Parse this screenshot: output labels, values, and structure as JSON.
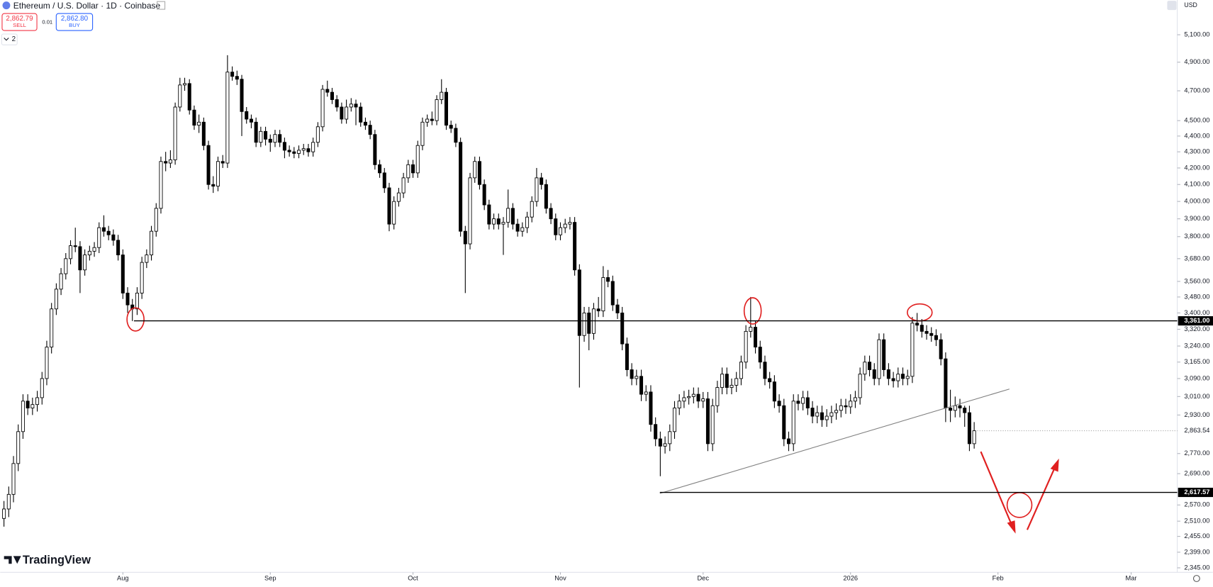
{
  "header": {
    "title": "Ethereum / U.S. Dollar · 1D · Coinbase",
    "sell_price": "2,862.79",
    "sell": "SELL",
    "spread": "0.01",
    "buy_price": "2,862.80",
    "buy": "BUY",
    "indicators": "2",
    "currency": "USD",
    "brand": "TradingView"
  },
  "chart_data": {
    "type": "candlestick",
    "log": true,
    "up_color": "#ffffff",
    "down_color": "#000000",
    "ylim": [
      2335,
      5365
    ],
    "yticks": [
      {
        "value": 5100,
        "label": "5,100.00"
      },
      {
        "value": 4900,
        "label": "4,900.00"
      },
      {
        "value": 4700,
        "label": "4,700.00"
      },
      {
        "value": 4500,
        "label": "4,500.00"
      },
      {
        "value": 4400,
        "label": "4,400.00"
      },
      {
        "value": 4300,
        "label": "4,300.00"
      },
      {
        "value": 4200,
        "label": "4,200.00"
      },
      {
        "value": 4100,
        "label": "4,100.00"
      },
      {
        "value": 4000,
        "label": "4,000.00"
      },
      {
        "value": 3900,
        "label": "3,900.00"
      },
      {
        "value": 3800,
        "label": "3,800.00"
      },
      {
        "value": 3680,
        "label": "3,680.00"
      },
      {
        "value": 3560,
        "label": "3,560.00"
      },
      {
        "value": 3480,
        "label": "3,480.00"
      },
      {
        "value": 3400,
        "label": "3,400.00"
      },
      {
        "value": 3320,
        "label": "3,320.00"
      },
      {
        "value": 3240,
        "label": "3,240.00"
      },
      {
        "value": 3165,
        "label": "3,165.00"
      },
      {
        "value": 3090,
        "label": "3,090.00"
      },
      {
        "value": 3010,
        "label": "3,010.00"
      },
      {
        "value": 2930,
        "label": "2,930.00"
      },
      {
        "value": 2770,
        "label": "2,770.00"
      },
      {
        "value": 2690,
        "label": "2,690.00"
      },
      {
        "value": 2570,
        "label": "2,570.00"
      },
      {
        "value": 2510,
        "label": "2,510.00"
      },
      {
        "value": 2455,
        "label": "2,455.00"
      },
      {
        "value": 2399,
        "label": "2,399.00"
      },
      {
        "value": 2345,
        "label": "2,345.00"
      }
    ],
    "xlim": [
      -0.8,
      246.7
    ],
    "xticks": [
      {
        "value": 25,
        "label": "Aug"
      },
      {
        "value": 56,
        "label": "Sep"
      },
      {
        "value": 86,
        "label": "Oct"
      },
      {
        "value": 117,
        "label": "Nov"
      },
      {
        "value": 147,
        "label": "Dec"
      },
      {
        "value": 178,
        "label": "2026"
      },
      {
        "value": 209,
        "label": "Feb"
      },
      {
        "value": 237,
        "label": "Mar"
      }
    ],
    "hlines": [
      {
        "value": 3361,
        "label": "3,361.00"
      },
      {
        "value": 2617.57,
        "label": "2,617.57"
      }
    ],
    "last_label": "2,863.54",
    "open": [
      2520,
      2555,
      2610,
      2730,
      2860,
      2990,
      2960,
      2975,
      3005,
      3090,
      3235,
      3420,
      3520,
      3600,
      3680,
      3750,
      3745,
      3620,
      3700,
      3720,
      3740,
      3850,
      3830,
      3810,
      3780,
      3700,
      3500,
      3440,
      3420,
      3500,
      3660,
      3700,
      3830,
      3960,
      4240,
      4230,
      4250,
      4590,
      4740,
      4750,
      4570,
      4470,
      4490,
      4340,
      4100,
      4090,
      4240,
      4230,
      4830,
      4800,
      4780,
      4560,
      4510,
      4490,
      4360,
      4430,
      4380,
      4360,
      4410,
      4360,
      4310,
      4300,
      4290,
      4310,
      4320,
      4300,
      4360,
      4460,
      4710,
      4690,
      4640,
      4590,
      4510,
      4590,
      4610,
      4590,
      4490,
      4470,
      4410,
      4220,
      4170,
      4080,
      3870,
      4000,
      4050,
      4140,
      4220,
      4170,
      4340,
      4490,
      4510,
      4500,
      4640,
      4690,
      4470,
      4450,
      4360,
      3830,
      3760,
      4140,
      4240,
      4100,
      3980,
      3870,
      3900,
      3870,
      3880,
      3960,
      3870,
      3830,
      3850,
      3910,
      4000,
      4140,
      4100,
      3960,
      3900,
      3810,
      3850,
      3870,
      3880,
      3620,
      3290,
      3400,
      3300,
      3420,
      3410,
      3580,
      3560,
      3440,
      3400,
      3250,
      3130,
      3090,
      3100,
      3020,
      3030,
      2890,
      2830,
      2800,
      2810,
      2860,
      2960,
      2990,
      3005,
      3010,
      3020,
      2990,
      3000,
      2810,
      2970,
      3050,
      3110,
      3050,
      3060,
      3090,
      3165,
      3310,
      3330,
      3235,
      3165,
      3090,
      3075,
      2990,
      2970,
      2830,
      2810,
      2990,
      2980,
      3005,
      2960,
      2925,
      2940,
      2910,
      2925,
      2940,
      2950,
      2970,
      2965,
      2990,
      3005,
      3110,
      3165,
      3130,
      3090,
      3270,
      3130,
      3090,
      3080,
      3110,
      3090,
      3100,
      3350,
      3340,
      3310,
      3300,
      3290,
      3270,
      3180,
      2960,
      2950,
      2970,
      2960,
      2940,
      2810
    ],
    "high": [
      2585,
      2640,
      2760,
      2890,
      3020,
      3020,
      3005,
      3035,
      3120,
      3265,
      3450,
      3550,
      3630,
      3710,
      3780,
      3850,
      3775,
      3730,
      3750,
      3770,
      3880,
      3920,
      3860,
      3840,
      3810,
      3730,
      3530,
      3470,
      3530,
      3690,
      3730,
      3860,
      3990,
      4270,
      4300,
      4310,
      4620,
      4790,
      4790,
      4780,
      4600,
      4540,
      4520,
      4370,
      4150,
      4270,
      4280,
      4950,
      4870,
      4840,
      4810,
      4590,
      4540,
      4520,
      4460,
      4460,
      4410,
      4440,
      4440,
      4390,
      4340,
      4330,
      4340,
      4350,
      4350,
      4390,
      4490,
      4740,
      4770,
      4720,
      4670,
      4620,
      4640,
      4650,
      4640,
      4620,
      4520,
      4500,
      4440,
      4250,
      4200,
      4110,
      4030,
      4080,
      4170,
      4250,
      4250,
      4370,
      4520,
      4540,
      4560,
      4670,
      4780,
      4720,
      4500,
      4480,
      4390,
      3860,
      4170,
      4270,
      4270,
      4130,
      4010,
      3930,
      3930,
      3910,
      4070,
      3990,
      3900,
      3880,
      3940,
      4030,
      4200,
      4170,
      4130,
      3990,
      3930,
      3880,
      3900,
      3910,
      3910,
      3650,
      3430,
      3430,
      3450,
      3480,
      3640,
      3620,
      3590,
      3470,
      3430,
      3280,
      3160,
      3130,
      3130,
      3060,
      3060,
      2920,
      2860,
      2840,
      2890,
      2990,
      3020,
      3035,
      3040,
      3050,
      3050,
      3030,
      3030,
      3000,
      3080,
      3140,
      3140,
      3090,
      3120,
      3195,
      3340,
      3480,
      3360,
      3265,
      3195,
      3120,
      3105,
      3020,
      3000,
      2860,
      3020,
      3020,
      3035,
      3035,
      2990,
      2970,
      2970,
      2955,
      2970,
      2980,
      3000,
      3000,
      3020,
      3035,
      3140,
      3195,
      3195,
      3160,
      3300,
      3300,
      3160,
      3120,
      3140,
      3140,
      3130,
      3380,
      3400,
      3370,
      3340,
      3330,
      3320,
      3300,
      3210,
      3040,
      3010,
      3000,
      2970,
      2970,
      2900
    ],
    "low": [
      2490,
      2525,
      2580,
      2700,
      2830,
      2930,
      2930,
      2945,
      2975,
      3060,
      3205,
      3390,
      3490,
      3570,
      3650,
      3715,
      3500,
      3590,
      3670,
      3690,
      3710,
      3800,
      3780,
      3750,
      3670,
      3470,
      3400,
      3360,
      3390,
      3470,
      3630,
      3670,
      3800,
      3930,
      4180,
      4200,
      4220,
      4560,
      4700,
      4540,
      4440,
      4420,
      4310,
      4070,
      4050,
      4060,
      4200,
      4200,
      4770,
      4740,
      4400,
      4480,
      4450,
      4330,
      4330,
      4340,
      4300,
      4330,
      4330,
      4260,
      4270,
      4260,
      4260,
      4280,
      4270,
      4270,
      4330,
      4430,
      4660,
      4610,
      4560,
      4480,
      4480,
      4560,
      4470,
      4460,
      4440,
      4380,
      4190,
      4140,
      4050,
      3830,
      3840,
      3970,
      4020,
      4110,
      4140,
      4140,
      4310,
      4460,
      4470,
      4470,
      4610,
      4440,
      4420,
      4330,
      3800,
      3500,
      3730,
      4110,
      4070,
      3950,
      3840,
      3840,
      3840,
      3700,
      3850,
      3840,
      3800,
      3800,
      3820,
      3880,
      3970,
      4070,
      3930,
      3870,
      3780,
      3780,
      3820,
      3840,
      3590,
      3050,
      3260,
      3220,
      3270,
      3380,
      3380,
      3530,
      3410,
      3370,
      3220,
      3100,
      3060,
      3060,
      2990,
      2990,
      2860,
      2800,
      2680,
      2770,
      2780,
      2830,
      2930,
      2960,
      2975,
      2980,
      2960,
      2960,
      2780,
      2780,
      2940,
      3020,
      3020,
      3020,
      3030,
      3060,
      3135,
      3280,
      3205,
      3135,
      3060,
      3045,
      2960,
      2940,
      2800,
      2780,
      2780,
      2950,
      2950,
      2930,
      2895,
      2895,
      2880,
      2880,
      2895,
      2910,
      2920,
      2935,
      2935,
      2960,
      2975,
      3080,
      3100,
      3060,
      3060,
      3100,
      3060,
      3050,
      3050,
      3060,
      3060,
      3070,
      3310,
      3280,
      3270,
      3260,
      3240,
      3150,
      2900,
      2900,
      2920,
      2920,
      2880,
      2780,
      2790
    ],
    "close": [
      2555,
      2610,
      2730,
      2860,
      2990,
      2960,
      2975,
      3005,
      3090,
      3235,
      3420,
      3520,
      3600,
      3680,
      3750,
      3745,
      3620,
      3700,
      3720,
      3740,
      3850,
      3830,
      3810,
      3780,
      3700,
      3500,
      3440,
      3420,
      3500,
      3660,
      3700,
      3830,
      3960,
      4240,
      4230,
      4250,
      4590,
      4740,
      4750,
      4570,
      4470,
      4490,
      4340,
      4100,
      4090,
      4240,
      4230,
      4830,
      4800,
      4780,
      4560,
      4510,
      4490,
      4360,
      4430,
      4380,
      4360,
      4410,
      4360,
      4310,
      4300,
      4290,
      4310,
      4320,
      4300,
      4360,
      4460,
      4710,
      4690,
      4640,
      4590,
      4510,
      4590,
      4610,
      4590,
      4490,
      4470,
      4410,
      4220,
      4170,
      4080,
      3870,
      4000,
      4050,
      4140,
      4220,
      4170,
      4340,
      4490,
      4510,
      4500,
      4640,
      4690,
      4470,
      4450,
      4360,
      3830,
      3760,
      4140,
      4240,
      4100,
      3980,
      3870,
      3900,
      3870,
      3880,
      3960,
      3870,
      3830,
      3850,
      3910,
      4000,
      4140,
      4100,
      3960,
      3900,
      3810,
      3850,
      3870,
      3880,
      3620,
      3290,
      3400,
      3300,
      3420,
      3410,
      3580,
      3560,
      3440,
      3400,
      3250,
      3130,
      3090,
      3100,
      3020,
      3030,
      2890,
      2830,
      2800,
      2810,
      2860,
      2960,
      2990,
      3005,
      3010,
      3020,
      2990,
      3000,
      2810,
      2970,
      3050,
      3110,
      3050,
      3060,
      3090,
      3165,
      3310,
      3330,
      3235,
      3165,
      3090,
      3075,
      2990,
      2970,
      2830,
      2810,
      2990,
      2980,
      3005,
      2960,
      2925,
      2940,
      2910,
      2925,
      2940,
      2950,
      2970,
      2965,
      2990,
      3005,
      3110,
      3165,
      3130,
      3090,
      3270,
      3130,
      3090,
      3080,
      3110,
      3090,
      3100,
      3350,
      3340,
      3310,
      3300,
      3290,
      3270,
      3180,
      2960,
      2950,
      2970,
      2960,
      2940,
      2810,
      2863.54
    ]
  }
}
